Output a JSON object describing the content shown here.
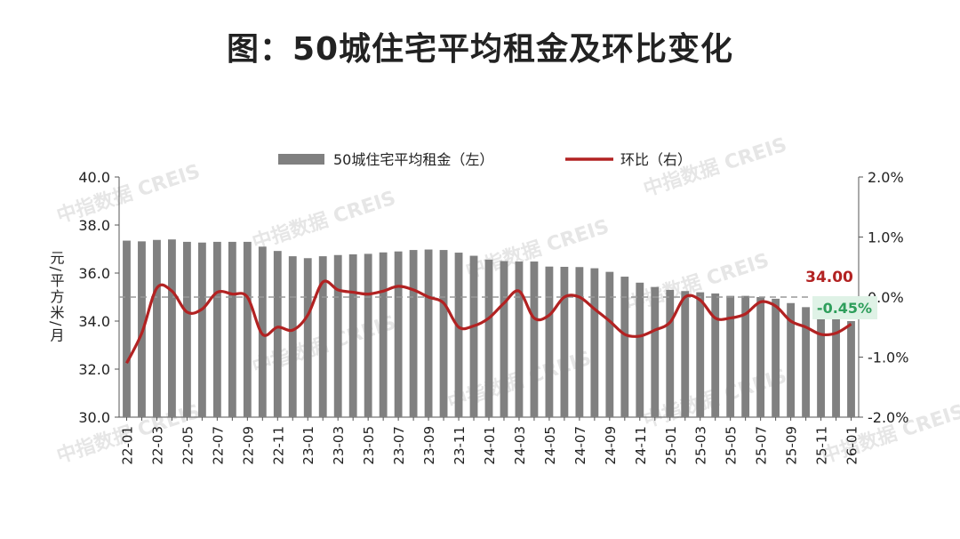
{
  "page_title": "图：50城住宅平均租金及环比变化",
  "watermark_text": "中指数据 CREIS",
  "chart_data": {
    "type": "bar",
    "title": "图：50城住宅平均租金及环比变化",
    "ylabel": "元/平方米/月",
    "ylim": [
      30.0,
      40.0
    ],
    "y2lim": [
      -2.0,
      2.0
    ],
    "yticks": [
      "30.0",
      "32.0",
      "34.0",
      "36.0",
      "38.0",
      "40.0"
    ],
    "y2ticks": [
      "-2.0%",
      "-1.0%",
      "0.0%",
      "1.0%",
      "2.0%"
    ],
    "categories": [
      "22-01",
      "22-02",
      "22-03",
      "22-04",
      "22-05",
      "22-06",
      "22-07",
      "22-08",
      "22-09",
      "22-10",
      "22-11",
      "22-12",
      "23-01",
      "23-02",
      "23-03",
      "23-04",
      "23-05",
      "23-06",
      "23-07",
      "23-08",
      "23-09",
      "23-10",
      "23-11",
      "23-12",
      "24-01",
      "24-02",
      "24-03",
      "24-04",
      "24-05",
      "24-06",
      "24-07",
      "24-08",
      "24-09",
      "24-10",
      "24-11",
      "24-12",
      "25-01",
      "25-02",
      "25-03",
      "25-04",
      "25-05",
      "25-06",
      "25-07",
      "25-08",
      "25-09",
      "25-10",
      "25-11",
      "25-12",
      "26-01"
    ],
    "xtick_labels": [
      "22-01",
      "22-03",
      "22-05",
      "22-07",
      "22-09",
      "22-11",
      "23-01",
      "23-03",
      "23-05",
      "23-07",
      "23-09",
      "23-11",
      "24-01",
      "24-03",
      "24-05",
      "24-07",
      "24-09",
      "24-11",
      "25-01",
      "25-03",
      "25-05",
      "25-07",
      "25-09",
      "25-11",
      "26-01"
    ],
    "series": [
      {
        "name": "50城住宅平均租金（左）",
        "type": "bar",
        "axis": "left",
        "color": "#808080",
        "values": [
          37.35,
          37.32,
          37.38,
          37.4,
          37.3,
          37.27,
          37.3,
          37.3,
          37.3,
          37.1,
          36.92,
          36.7,
          36.62,
          36.7,
          36.75,
          36.78,
          36.8,
          36.86,
          36.9,
          36.96,
          36.98,
          36.96,
          36.85,
          36.72,
          36.56,
          36.5,
          36.48,
          36.48,
          36.27,
          36.26,
          36.25,
          36.2,
          36.05,
          35.85,
          35.6,
          35.42,
          35.3,
          35.25,
          35.2,
          35.15,
          35.05,
          35.05,
          35.0,
          34.93,
          34.75,
          34.58,
          34.42,
          34.25,
          34.0
        ]
      },
      {
        "name": "环比（右）",
        "type": "line",
        "axis": "right",
        "color": "#b22222",
        "values": [
          -1.1,
          -0.6,
          0.15,
          0.1,
          -0.25,
          -0.2,
          0.08,
          0.05,
          0.0,
          -0.62,
          -0.5,
          -0.55,
          -0.3,
          0.25,
          0.12,
          0.08,
          0.05,
          0.1,
          0.18,
          0.12,
          0.0,
          -0.1,
          -0.5,
          -0.48,
          -0.35,
          -0.1,
          0.1,
          -0.35,
          -0.3,
          0.0,
          0.0,
          -0.2,
          -0.4,
          -0.62,
          -0.65,
          -0.55,
          -0.42,
          0.0,
          -0.05,
          -0.35,
          -0.35,
          -0.28,
          -0.08,
          -0.15,
          -0.4,
          -0.5,
          -0.62,
          -0.6,
          -0.45
        ]
      }
    ],
    "reference_line": {
      "axis": "left",
      "value": 35.0,
      "style": "dashed"
    },
    "annotations": [
      {
        "text": "34.00",
        "color": "#b22222"
      },
      {
        "text": "-0.45%",
        "color": "#2e9e5b",
        "background": "#dff2e6"
      }
    ],
    "legend_position": "top",
    "grid": false
  }
}
